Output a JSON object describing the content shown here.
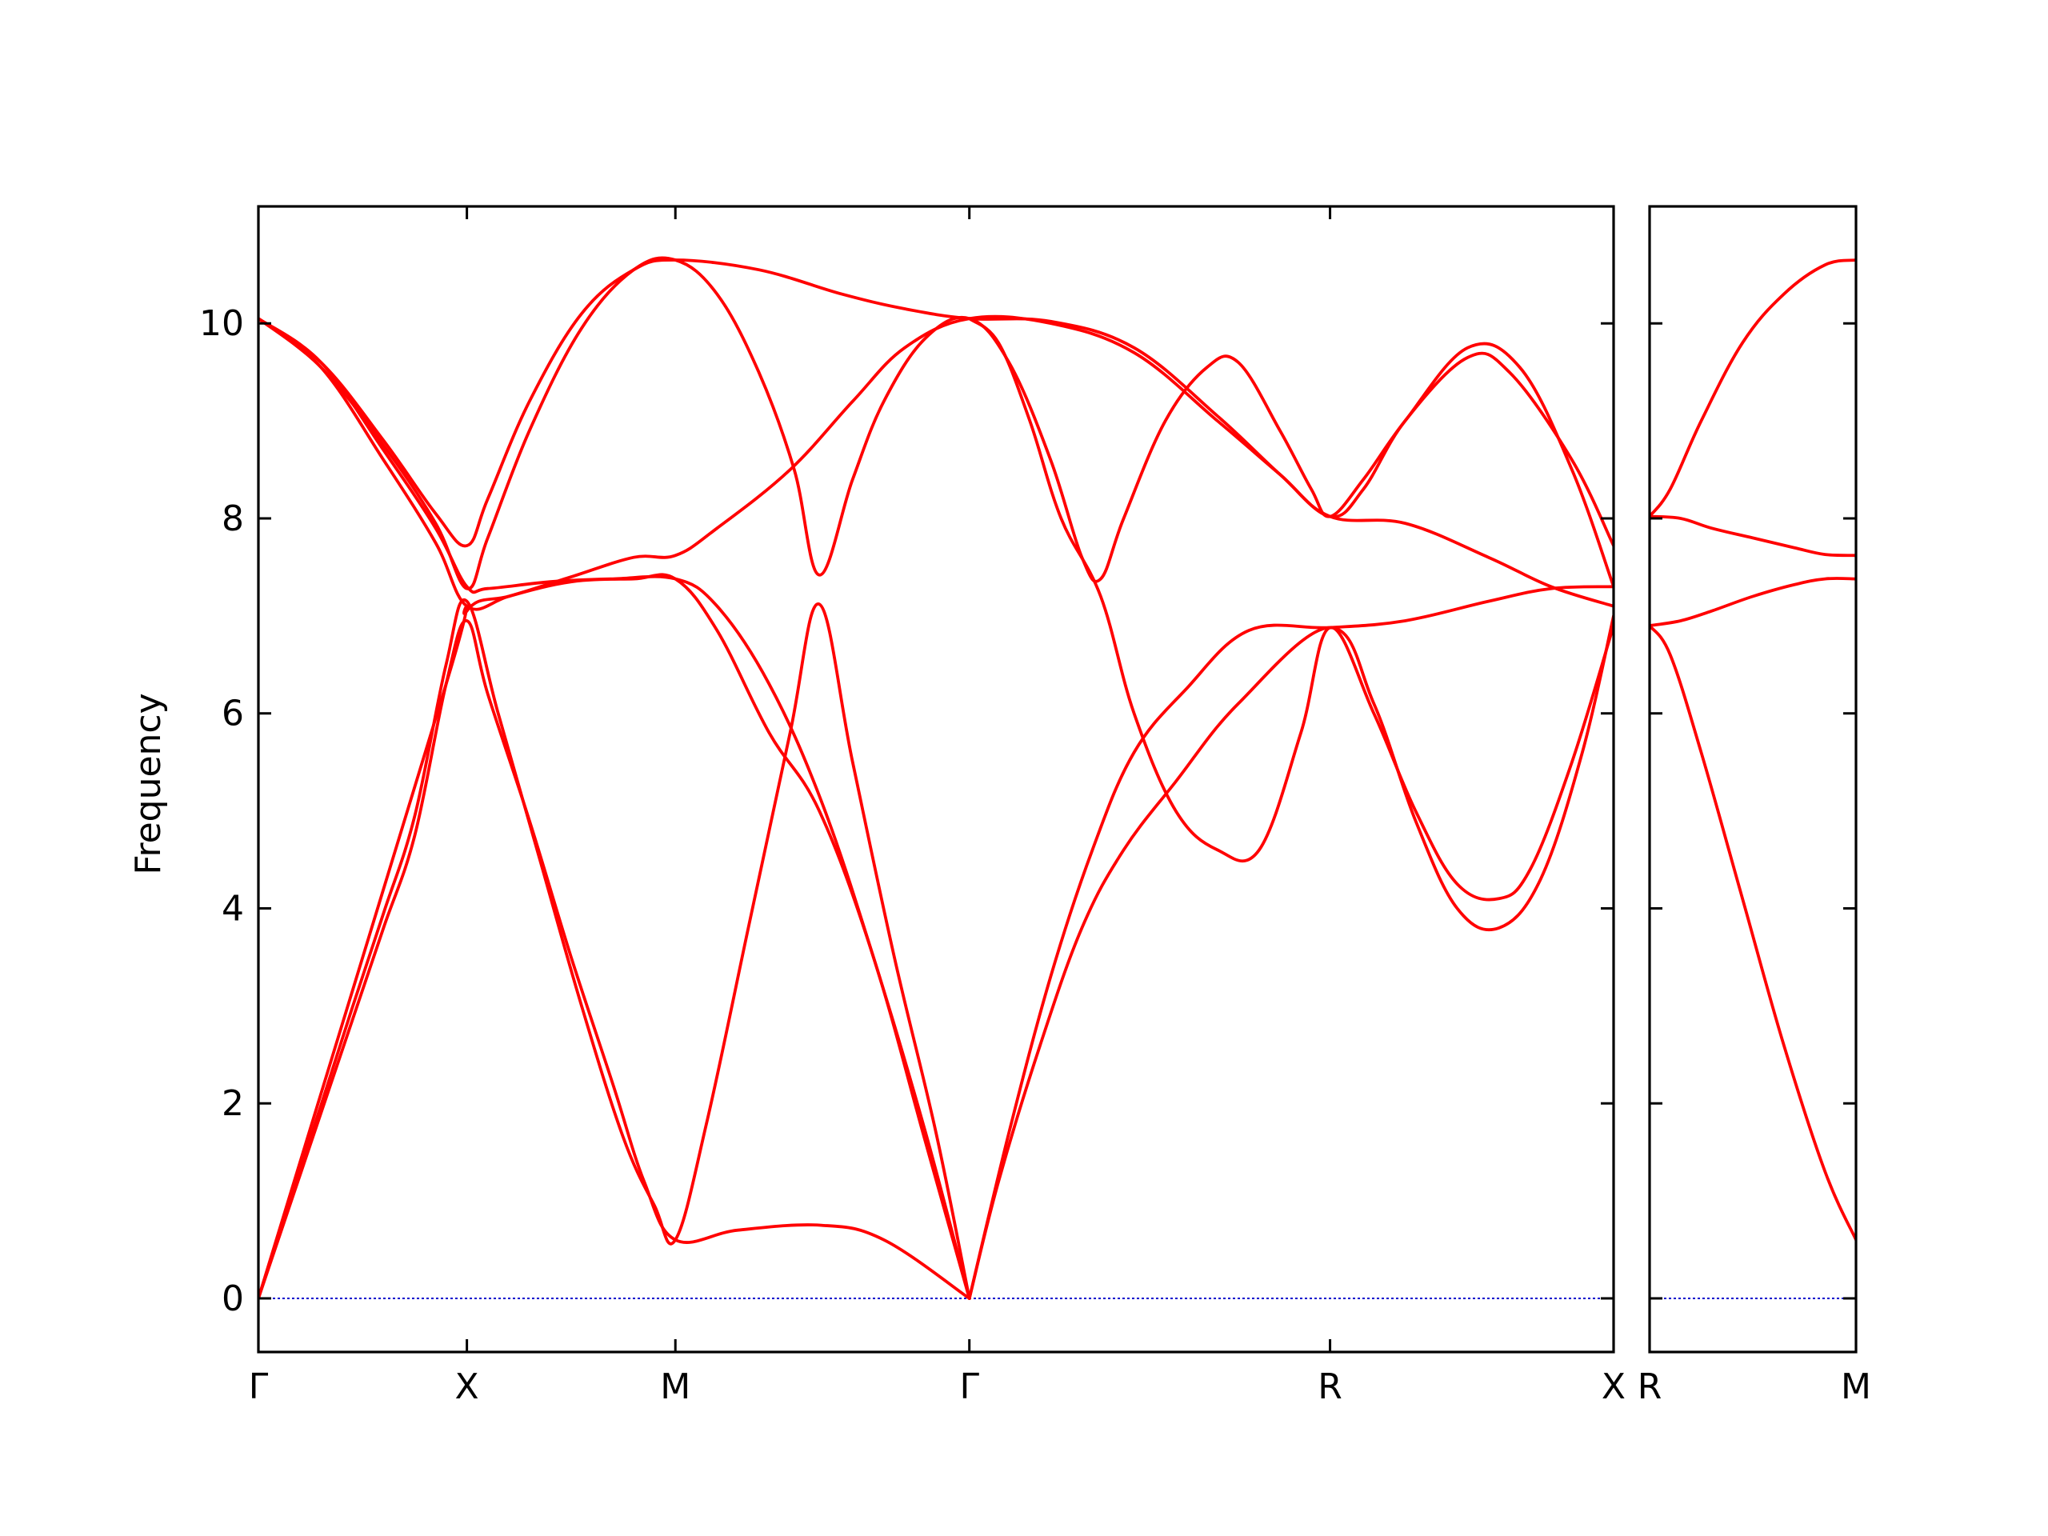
{
  "chart_data": {
    "type": "line",
    "ylabel": "Frequency",
    "ylim": [
      -0.55,
      11.2
    ],
    "yticks": [
      0,
      2,
      4,
      6,
      8,
      10
    ],
    "grid": false,
    "legend": "none",
    "colors": {
      "bands": "#ff0000",
      "zero_line": "#0000cc"
    },
    "panels": [
      {
        "name": "left",
        "x_range": [
          0,
          6.5
        ],
        "xticks": [
          {
            "x": 0,
            "label": "Γ"
          },
          {
            "x": 1,
            "label": "X"
          },
          {
            "x": 2,
            "label": "M"
          },
          {
            "x": 3.41,
            "label": "Γ"
          },
          {
            "x": 5.14,
            "label": "R"
          },
          {
            "x": 6.5,
            "label": "X"
          }
        ],
        "bands": [
          [
            [
              0,
              0
            ],
            [
              0.15,
              0.95
            ],
            [
              0.3,
              1.9
            ],
            [
              0.45,
              2.85
            ],
            [
              0.6,
              3.8
            ],
            [
              0.75,
              4.75
            ],
            [
              0.9,
              6.3
            ],
            [
              1,
              6.95
            ],
            [
              1.1,
              6.2
            ],
            [
              1.3,
              4.9
            ],
            [
              1.5,
              3.5
            ],
            [
              1.7,
              2.2
            ],
            [
              1.85,
              1.2
            ],
            [
              2,
              0.6
            ],
            [
              2.3,
              0.7
            ],
            [
              2.7,
              0.75
            ],
            [
              3.0,
              0.6
            ],
            [
              3.41,
              0
            ]
          ],
          [
            [
              0,
              0
            ],
            [
              0.15,
              1.0
            ],
            [
              0.3,
              1.98
            ],
            [
              0.45,
              2.98
            ],
            [
              0.6,
              3.95
            ],
            [
              0.75,
              4.95
            ],
            [
              0.9,
              6.5
            ],
            [
              1,
              7.15
            ],
            [
              1.15,
              6.0
            ],
            [
              1.35,
              4.5
            ],
            [
              1.55,
              3.0
            ],
            [
              1.75,
              1.65
            ],
            [
              1.9,
              0.95
            ],
            [
              2,
              0.6
            ],
            [
              2.15,
              1.8
            ],
            [
              2.35,
              3.8
            ],
            [
              2.55,
              5.8
            ],
            [
              2.69,
              7.12
            ],
            [
              2.85,
              5.5
            ],
            [
              3.05,
              3.5
            ],
            [
              3.25,
              1.7
            ],
            [
              3.41,
              0
            ]
          ],
          [
            [
              0,
              10.05
            ],
            [
              0.3,
              9.6
            ],
            [
              0.6,
              8.7
            ],
            [
              0.85,
              7.9
            ],
            [
              1,
              7.3
            ],
            [
              1.1,
              7.28
            ],
            [
              1.4,
              7.35
            ],
            [
              1.7,
              7.38
            ],
            [
              2,
              7.38
            ],
            [
              2.2,
              7.1
            ],
            [
              2.45,
              6.3
            ],
            [
              2.7,
              5.1
            ],
            [
              2.95,
              3.5
            ],
            [
              3.2,
              1.7
            ],
            [
              3.41,
              0
            ]
          ],
          [
            [
              0,
              10.05
            ],
            [
              0.3,
              9.55
            ],
            [
              0.6,
              8.6
            ],
            [
              0.85,
              7.75
            ],
            [
              1,
              7.1
            ],
            [
              1.2,
              7.2
            ],
            [
              1.5,
              7.4
            ],
            [
              1.8,
              7.6
            ],
            [
              2,
              7.62
            ],
            [
              2.2,
              7.9
            ],
            [
              2.55,
              8.5
            ],
            [
              2.85,
              9.2
            ],
            [
              3.1,
              9.75
            ],
            [
              3.41,
              10.05
            ],
            [
              3.8,
              10.0
            ],
            [
              4.2,
              9.7
            ],
            [
              4.6,
              9.0
            ],
            [
              4.9,
              8.45
            ],
            [
              5.14,
              8.02
            ],
            [
              5.5,
              7.95
            ],
            [
              5.9,
              7.6
            ],
            [
              6.2,
              7.3
            ],
            [
              6.5,
              7.1
            ]
          ],
          [
            [
              0,
              10.05
            ],
            [
              0.3,
              9.6
            ],
            [
              0.6,
              8.8
            ],
            [
              0.85,
              8.05
            ],
            [
              1,
              7.72
            ],
            [
              1.1,
              8.2
            ],
            [
              1.3,
              9.2
            ],
            [
              1.55,
              10.1
            ],
            [
              1.8,
              10.55
            ],
            [
              2,
              10.65
            ],
            [
              2.4,
              10.55
            ],
            [
              2.8,
              10.3
            ],
            [
              3.1,
              10.15
            ],
            [
              3.41,
              10.05
            ],
            [
              3.8,
              10.02
            ],
            [
              4.2,
              9.75
            ],
            [
              4.6,
              9.05
            ],
            [
              4.9,
              8.45
            ],
            [
              5.14,
              8.02
            ],
            [
              5.3,
              8.3
            ],
            [
              5.5,
              9.0
            ],
            [
              5.8,
              9.65
            ],
            [
              6.0,
              9.5
            ],
            [
              6.3,
              8.6
            ],
            [
              6.5,
              7.72
            ]
          ],
          [
            [
              0,
              10.05
            ],
            [
              0.3,
              9.55
            ],
            [
              0.6,
              8.75
            ],
            [
              0.85,
              7.95
            ],
            [
              1,
              7.28
            ],
            [
              1.1,
              7.8
            ],
            [
              1.3,
              8.9
            ],
            [
              1.55,
              9.95
            ],
            [
              1.8,
              10.55
            ],
            [
              2,
              10.65
            ],
            [
              2.2,
              10.3
            ],
            [
              2.4,
              9.5
            ],
            [
              2.57,
              8.5
            ],
            [
              2.69,
              7.42
            ],
            [
              2.85,
              8.4
            ],
            [
              3.0,
              9.2
            ],
            [
              3.2,
              9.85
            ],
            [
              3.41,
              10.05
            ],
            [
              3.6,
              9.6
            ],
            [
              3.8,
              8.6
            ],
            [
              3.95,
              7.6
            ],
            [
              4.04,
              7.38
            ],
            [
              4.15,
              8.0
            ],
            [
              4.35,
              9.0
            ],
            [
              4.55,
              9.55
            ],
            [
              4.7,
              9.6
            ],
            [
              4.9,
              8.9
            ],
            [
              5.05,
              8.3
            ],
            [
              5.14,
              8.02
            ],
            [
              5.3,
              8.4
            ],
            [
              5.5,
              9.0
            ],
            [
              5.8,
              9.75
            ],
            [
              6.05,
              9.55
            ],
            [
              6.3,
              8.5
            ],
            [
              6.5,
              7.3
            ]
          ],
          [
            [
              0,
              0
            ],
            [
              0.9,
              6.3
            ],
            [
              1,
              7.05
            ],
            [
              1.2,
              7.2
            ],
            [
              1.5,
              7.35
            ],
            [
              1.8,
              7.38
            ],
            [
              2,
              7.38
            ],
            [
              2.2,
              6.85
            ],
            [
              2.45,
              5.8
            ],
            [
              2.69,
              5.0
            ],
            [
              2.95,
              3.5
            ],
            [
              3.2,
              1.6
            ],
            [
              3.41,
              0
            ]
          ],
          [
            [
              3.41,
              0
            ],
            [
              3.6,
              1.7
            ],
            [
              3.8,
              3.3
            ],
            [
              4.0,
              4.6
            ],
            [
              4.2,
              5.6
            ],
            [
              4.45,
              6.25
            ],
            [
              4.75,
              6.85
            ],
            [
              5.14,
              6.88
            ],
            [
              5.5,
              6.95
            ],
            [
              5.9,
              7.15
            ],
            [
              6.2,
              7.28
            ],
            [
              6.5,
              7.3
            ]
          ],
          [
            [
              3.41,
              10.05
            ],
            [
              3.55,
              9.8
            ],
            [
              3.7,
              9.0
            ],
            [
              3.85,
              8.0
            ],
            [
              4.04,
              7.2
            ],
            [
              4.2,
              6.0
            ],
            [
              4.4,
              5.0
            ],
            [
              4.6,
              4.6
            ],
            [
              4.8,
              4.6
            ],
            [
              5.0,
              5.8
            ],
            [
              5.14,
              6.88
            ],
            [
              5.35,
              6.0
            ],
            [
              5.55,
              5.0
            ],
            [
              5.75,
              4.25
            ],
            [
              5.95,
              4.1
            ],
            [
              6.1,
              4.4
            ],
            [
              6.3,
              5.5
            ],
            [
              6.5,
              6.9
            ]
          ],
          [
            [
              3.41,
              0
            ],
            [
              3.55,
              1.2
            ],
            [
              3.75,
              2.6
            ],
            [
              3.95,
              3.8
            ],
            [
              4.15,
              4.6
            ],
            [
              4.4,
              5.3
            ],
            [
              4.7,
              6.1
            ],
            [
              5.14,
              6.88
            ],
            [
              5.35,
              6.1
            ],
            [
              5.55,
              4.9
            ],
            [
              5.75,
              4.0
            ],
            [
              5.95,
              3.8
            ],
            [
              6.15,
              4.3
            ],
            [
              6.35,
              5.6
            ],
            [
              6.5,
              7.0
            ]
          ]
        ]
      },
      {
        "name": "right",
        "x_range": [
          0,
          1
        ],
        "xticks": [
          {
            "x": 0,
            "label": "R"
          },
          {
            "x": 1,
            "label": "M"
          }
        ],
        "bands": [
          [
            [
              0,
              6.9
            ],
            [
              0.1,
              6.6
            ],
            [
              0.25,
              5.6
            ],
            [
              0.45,
              4.1
            ],
            [
              0.65,
              2.6
            ],
            [
              0.85,
              1.3
            ],
            [
              1,
              0.6
            ]
          ],
          [
            [
              0,
              6.9
            ],
            [
              0.15,
              6.95
            ],
            [
              0.3,
              7.05
            ],
            [
              0.5,
              7.2
            ],
            [
              0.7,
              7.32
            ],
            [
              0.85,
              7.38
            ],
            [
              1,
              7.38
            ]
          ],
          [
            [
              0,
              8.02
            ],
            [
              0.15,
              8.0
            ],
            [
              0.3,
              7.9
            ],
            [
              0.5,
              7.8
            ],
            [
              0.7,
              7.7
            ],
            [
              0.85,
              7.63
            ],
            [
              1,
              7.62
            ]
          ],
          [
            [
              0,
              8.02
            ],
            [
              0.1,
              8.3
            ],
            [
              0.25,
              9.0
            ],
            [
              0.45,
              9.8
            ],
            [
              0.65,
              10.3
            ],
            [
              0.85,
              10.6
            ],
            [
              1,
              10.65
            ]
          ]
        ]
      }
    ]
  }
}
